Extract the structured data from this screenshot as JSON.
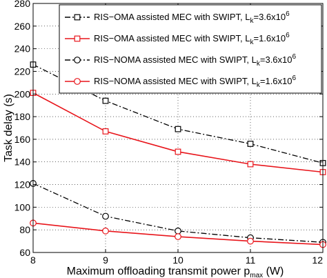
{
  "chart_data": {
    "type": "line",
    "xlabel_main": "Maximum offloading transmit power p",
    "xlabel_sub": "max",
    "xlabel_unit": " (W)",
    "ylabel": "Task delay (s)",
    "xlim": [
      8,
      12
    ],
    "ylim": [
      60,
      280
    ],
    "x_ticks": [
      8,
      9,
      10,
      11,
      12
    ],
    "y_ticks": [
      60,
      80,
      100,
      120,
      140,
      160,
      180,
      200,
      220,
      240,
      260,
      280
    ],
    "x": [
      8,
      9,
      10,
      11,
      12
    ],
    "grid": true,
    "legend_position": "top-right",
    "series": [
      {
        "label_prefix": "RIS−OMA assisted MEC with SWIPT, L",
        "label_sub": "k",
        "label_mid": "=3.6x10",
        "label_sup": "6",
        "values": [
          226,
          194,
          169,
          156,
          139
        ],
        "color": "#000000",
        "dash": "8,3,2,3",
        "marker": "square"
      },
      {
        "label_prefix": "RIS−OMA assisted MEC with SWIPT, L",
        "label_sub": "k",
        "label_mid": "=1.6x10",
        "label_sup": "6",
        "values": [
          201,
          167,
          149,
          138,
          131
        ],
        "color": "#e8141a",
        "dash": "",
        "marker": "square"
      },
      {
        "label_prefix": "RIS−NOMA assisted MEC with SWIPT, L",
        "label_sub": "k",
        "label_mid": "=3.6x10",
        "label_sup": "6",
        "values": [
          121,
          92,
          79,
          73,
          69
        ],
        "color": "#000000",
        "dash": "8,3,2,3",
        "marker": "circle"
      },
      {
        "label_prefix": "RIS−NOMA assisted MEC with SWIPT, L",
        "label_sub": "k",
        "label_mid": "=1.6x10",
        "label_sup": "6",
        "values": [
          86,
          79,
          74,
          70,
          67
        ],
        "color": "#e8141a",
        "dash": "",
        "marker": "circle"
      }
    ]
  }
}
